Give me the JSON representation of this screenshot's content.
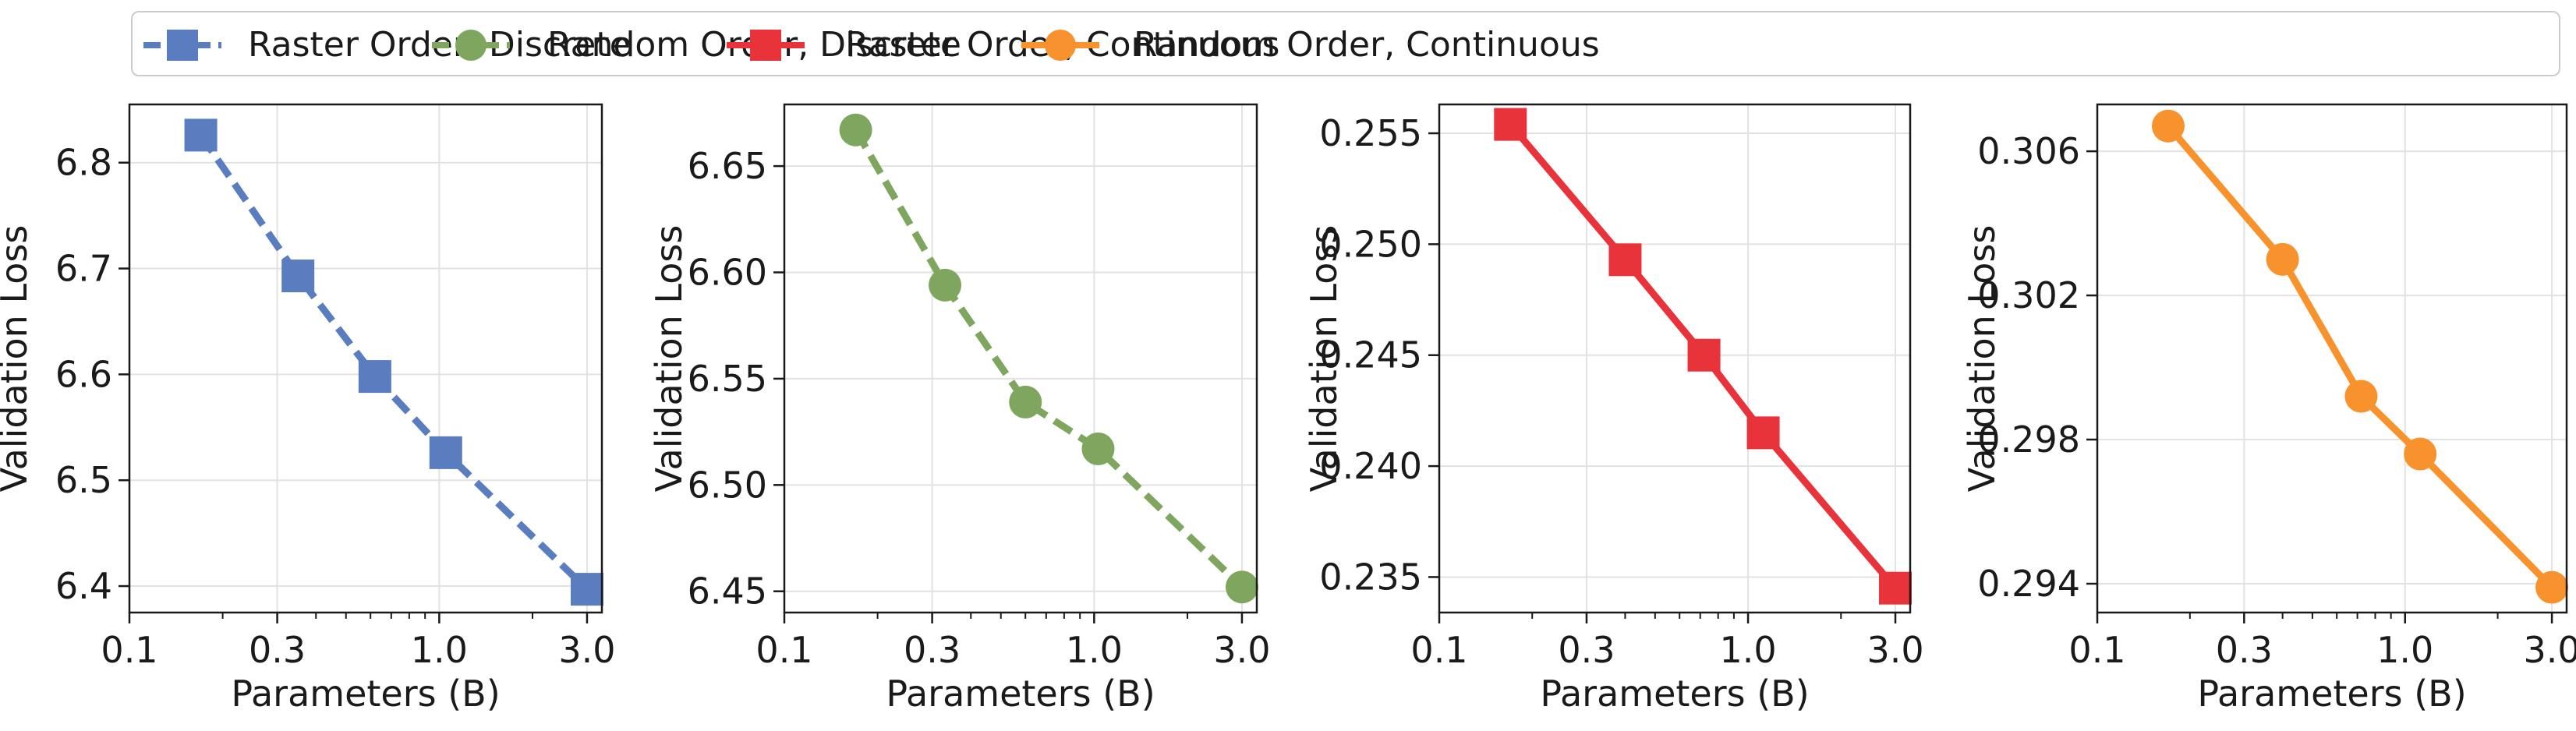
{
  "legend": {
    "entries": [
      {
        "label": "Raster Order, Discrete",
        "color": "#5a7dbf",
        "marker": "square",
        "linestyle": "dashed"
      },
      {
        "label": "Random Order, Discrete",
        "color": "#7ea65e",
        "marker": "circle",
        "linestyle": "dashed"
      },
      {
        "label": "Raster Order, Continuous",
        "color": "#e8333b",
        "marker": "square",
        "linestyle": "solid"
      },
      {
        "label": "Random Order, Continuous",
        "color": "#f7922c",
        "marker": "circle",
        "linestyle": "solid"
      }
    ]
  },
  "chart_data": [
    {
      "type": "line",
      "series": [
        {
          "name": "Raster Order, Discrete",
          "x": [
            0.17,
            0.35,
            0.62,
            1.05,
            3.0
          ],
          "values": [
            6.826,
            6.693,
            6.598,
            6.526,
            6.397
          ]
        }
      ],
      "xlabel": "Parameters (B)",
      "ylabel": "Validation Loss",
      "xscale": "log",
      "xlim": [
        0.1,
        3.35
      ],
      "ylim": [
        6.375,
        6.855
      ],
      "xticks": [
        "0.1",
        "0.3",
        "1.0",
        "3.0"
      ],
      "xtick_values": [
        0.1,
        0.3,
        1.0,
        3.0
      ],
      "yticks": [
        "6.4",
        "6.5",
        "6.6",
        "6.7",
        "6.8"
      ],
      "ytick_values": [
        6.4,
        6.5,
        6.6,
        6.7,
        6.8
      ],
      "color": "#5a7dbf",
      "marker": "square",
      "linestyle": "dashed",
      "grid": true
    },
    {
      "type": "line",
      "series": [
        {
          "name": "Random Order, Discrete",
          "x": [
            0.17,
            0.33,
            0.6,
            1.03,
            3.0
          ],
          "values": [
            6.667,
            6.594,
            6.539,
            6.517,
            6.452
          ]
        }
      ],
      "xlabel": "Parameters (B)",
      "ylabel": "Validation Loss",
      "xscale": "log",
      "xlim": [
        0.1,
        3.35
      ],
      "ylim": [
        6.44,
        6.679
      ],
      "xticks": [
        "0.1",
        "0.3",
        "1.0",
        "3.0"
      ],
      "xtick_values": [
        0.1,
        0.3,
        1.0,
        3.0
      ],
      "yticks": [
        "6.45",
        "6.50",
        "6.55",
        "6.60",
        "6.65"
      ],
      "ytick_values": [
        6.45,
        6.5,
        6.55,
        6.6,
        6.65
      ],
      "color": "#7ea65e",
      "marker": "circle",
      "linestyle": "dashed",
      "grid": true
    },
    {
      "type": "line",
      "series": [
        {
          "name": "Raster Order, Continuous",
          "x": [
            0.17,
            0.4,
            0.72,
            1.12,
            3.0
          ],
          "values": [
            0.2554,
            0.2493,
            0.245,
            0.2415,
            0.2345
          ]
        }
      ],
      "xlabel": "Parameters (B)",
      "ylabel": "Validation Loss",
      "xscale": "log",
      "xlim": [
        0.1,
        3.35
      ],
      "ylim": [
        0.2334,
        0.2563
      ],
      "xticks": [
        "0.1",
        "0.3",
        "1.0",
        "3.0"
      ],
      "xtick_values": [
        0.1,
        0.3,
        1.0,
        3.0
      ],
      "yticks": [
        "0.235",
        "0.240",
        "0.245",
        "0.250",
        "0.255"
      ],
      "ytick_values": [
        0.235,
        0.24,
        0.245,
        0.25,
        0.255
      ],
      "color": "#e8333b",
      "marker": "square",
      "linestyle": "solid",
      "grid": true
    },
    {
      "type": "line",
      "series": [
        {
          "name": "Random Order, Continuous",
          "x": [
            0.17,
            0.4,
            0.72,
            1.12,
            3.0
          ],
          "values": [
            0.3067,
            0.303,
            0.2992,
            0.2976,
            0.2939
          ]
        }
      ],
      "xlabel": "Parameters (B)",
      "ylabel": "Validation Loss",
      "xscale": "log",
      "xlim": [
        0.1,
        3.35
      ],
      "ylim": [
        0.2932,
        0.3073
      ],
      "xticks": [
        "0.1",
        "0.3",
        "1.0",
        "3.0"
      ],
      "xtick_values": [
        0.1,
        0.3,
        1.0,
        3.0
      ],
      "yticks": [
        "0.294",
        "0.298",
        "0.302",
        "0.306"
      ],
      "ytick_values": [
        0.294,
        0.298,
        0.302,
        0.306
      ],
      "color": "#f7922c",
      "marker": "circle",
      "linestyle": "solid",
      "grid": true
    }
  ]
}
